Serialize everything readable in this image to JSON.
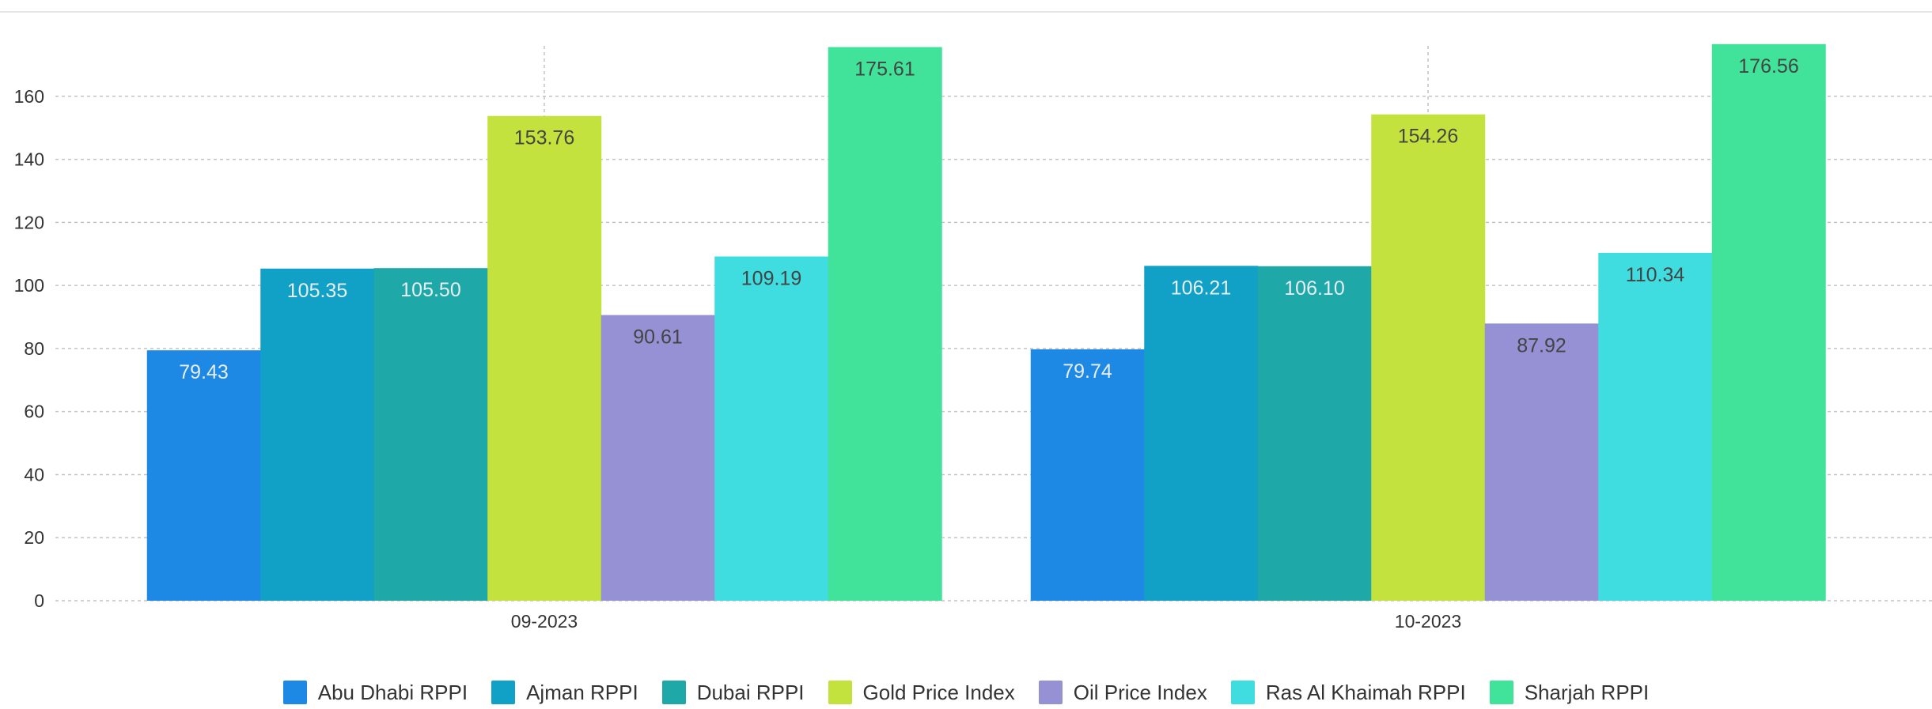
{
  "chart_data": {
    "type": "bar",
    "categories": [
      "09-2023",
      "10-2023"
    ],
    "series": [
      {
        "name": "Abu Dhabi RPPI",
        "color": "#1e88e5",
        "values": [
          79.43,
          79.74
        ],
        "labels": [
          "79.43",
          "79.74"
        ]
      },
      {
        "name": "Ajman RPPI",
        "color": "#12a1c6",
        "values": [
          105.35,
          106.21
        ],
        "labels": [
          "105.35",
          "106.21"
        ]
      },
      {
        "name": "Dubai RPPI",
        "color": "#1ea8a8",
        "values": [
          105.5,
          106.1
        ],
        "labels": [
          "105.50",
          "106.10"
        ]
      },
      {
        "name": "Gold Price Index",
        "color": "#c3e23e",
        "values": [
          153.76,
          154.26
        ],
        "labels": [
          "153.76",
          "154.26"
        ]
      },
      {
        "name": "Oil Price Index",
        "color": "#9591d4",
        "values": [
          90.61,
          87.92
        ],
        "labels": [
          "90.61",
          "87.92"
        ]
      },
      {
        "name": "Ras Al Khaimah RPPI",
        "color": "#40dde0",
        "values": [
          109.19,
          110.34
        ],
        "labels": [
          "109.19",
          "110.34"
        ]
      },
      {
        "name": "Sharjah RPPI",
        "color": "#41e39a",
        "values": [
          175.61,
          176.56
        ],
        "labels": [
          "175.61",
          "176.56"
        ]
      }
    ],
    "yticks": [
      "0",
      "20",
      "40",
      "60",
      "80",
      "100",
      "120",
      "140",
      "160"
    ],
    "ylim": [
      0,
      180
    ],
    "title": "",
    "xlabel": "",
    "ylabel": "",
    "grid": true,
    "legend_position": "bottom",
    "label_colors": {
      "light": "#e8eef5",
      "dark": "#444444"
    },
    "grid_color": "#c4c4c4"
  }
}
